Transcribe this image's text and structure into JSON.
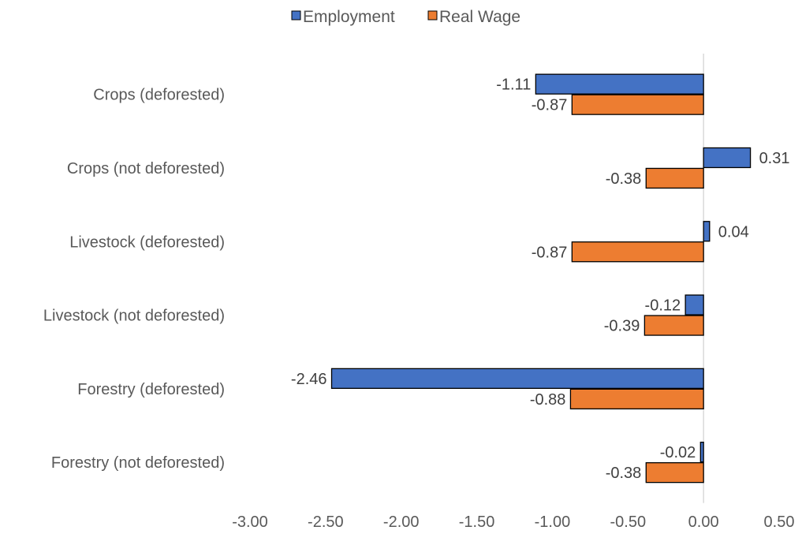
{
  "chart_data": {
    "type": "bar",
    "orientation": "horizontal",
    "categories": [
      "Crops (deforested)",
      "Crops (not deforested)",
      "Livestock (deforested)",
      "Livestock (not deforested)",
      "Forestry (deforested)",
      "Forestry (not deforested)"
    ],
    "series": [
      {
        "name": "Employment",
        "color": "#4472C4",
        "values": [
          -1.11,
          0.31,
          0.04,
          -0.12,
          -2.46,
          -0.02
        ],
        "labels": [
          "-1.11",
          "0.31",
          "0.04",
          "-0.12",
          "-2.46",
          "-0.02"
        ]
      },
      {
        "name": "Real Wage",
        "color": "#ED7D31",
        "values": [
          -0.87,
          -0.38,
          -0.87,
          -0.39,
          -0.88,
          -0.38
        ],
        "labels": [
          "-0.87",
          "-0.38",
          "-0.87",
          "-0.39",
          "-0.88",
          "-0.38"
        ]
      }
    ],
    "xlim": [
      -3.0,
      0.5
    ],
    "xticks": [
      -3.0,
      -2.5,
      -2.0,
      -1.5,
      -1.0,
      -0.5,
      0.0,
      0.5
    ],
    "xtick_labels": [
      "-3.00",
      "-2.50",
      "-2.00",
      "-1.50",
      "-1.00",
      "-0.50",
      "0.00",
      "0.50"
    ],
    "legend_position": "top",
    "grid": false
  }
}
